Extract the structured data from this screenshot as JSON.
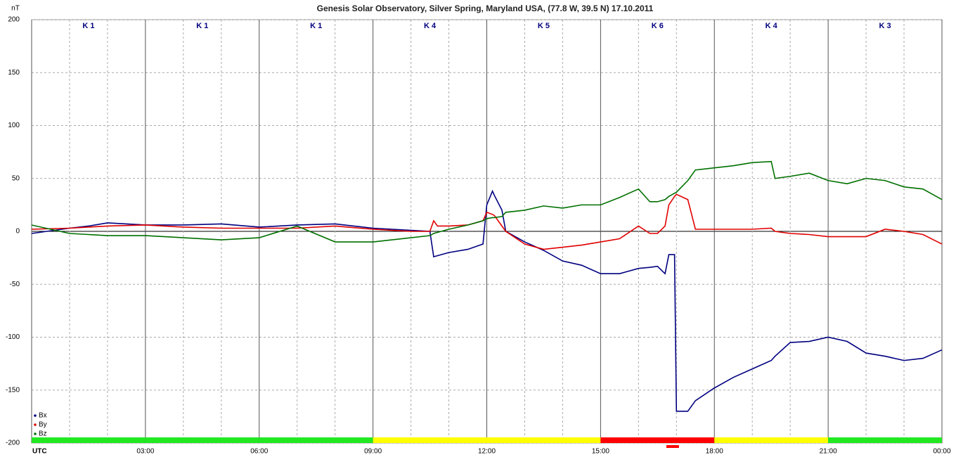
{
  "chart_data": {
    "type": "line",
    "title": "Genesis Solar Observatory, Silver Spring, Maryland USA, (77.8 W, 39.5 N)  17.10.2011",
    "y_label": "nT",
    "x": [
      0,
      1,
      1.5,
      2,
      3,
      4,
      5,
      6,
      7,
      8,
      9,
      10,
      10.5,
      10.6,
      10.7,
      11,
      11.5,
      11.9,
      12,
      12.15,
      12.2,
      12.4,
      12.5,
      13,
      13.5,
      14,
      14.5,
      15,
      15.5,
      16,
      16.3,
      16.5,
      16.7,
      16.8,
      16.95,
      17,
      17.3,
      17.5,
      18,
      18.5,
      19,
      19.5,
      19.6,
      20,
      20.5,
      21,
      21.5,
      22,
      22.5,
      23,
      23.5,
      24
    ],
    "series": [
      {
        "name": "Bx",
        "color": "#000080",
        "values": [
          -2,
          3,
          5,
          8,
          6,
          6,
          7,
          4,
          6,
          7,
          3,
          1,
          0,
          -24,
          -23,
          -20,
          -17,
          -12,
          25,
          38,
          34,
          20,
          0,
          -10,
          -18,
          -28,
          -32,
          -40,
          -40,
          -35,
          -34,
          -33,
          -40,
          -22,
          -22,
          -170,
          -170,
          -160,
          -148,
          -138,
          -130,
          -122,
          -118,
          -105,
          -104,
          -100,
          -104,
          -115,
          -118,
          -122,
          -120,
          -112
        ]
      },
      {
        "name": "By",
        "color": "#e00000",
        "values": [
          2,
          3,
          4,
          5,
          6,
          4,
          3,
          3,
          3,
          5,
          2,
          0,
          0,
          10,
          5,
          5,
          6,
          10,
          18,
          16,
          15,
          5,
          0,
          -12,
          -17,
          -15,
          -13,
          -10,
          -7,
          5,
          -2,
          -2,
          5,
          25,
          33,
          35,
          30,
          2,
          2,
          2,
          2,
          3,
          0,
          -2,
          -3,
          -5,
          -5,
          -5,
          2,
          0,
          -3,
          -12
        ]
      },
      {
        "name": "Bz",
        "color": "#007000",
        "values": [
          6,
          -2,
          -3,
          -4,
          -4,
          -6,
          -8,
          -6,
          5,
          -10,
          -10,
          -6,
          -4,
          -2,
          -1,
          2,
          6,
          10,
          12,
          13,
          13,
          14,
          18,
          20,
          24,
          22,
          25,
          25,
          32,
          40,
          28,
          28,
          30,
          33,
          36,
          37,
          48,
          58,
          60,
          62,
          65,
          66,
          50,
          52,
          55,
          48,
          45,
          50,
          48,
          42,
          40,
          30
        ]
      }
    ],
    "xlim": [
      0,
      24
    ],
    "xticks": [
      {
        "value": 0,
        "label": "UTC"
      },
      {
        "value": 3,
        "label": "03:00"
      },
      {
        "value": 6,
        "label": "06:00"
      },
      {
        "value": 9,
        "label": "09:00"
      },
      {
        "value": 12,
        "label": "12:00"
      },
      {
        "value": 15,
        "label": "15:00"
      },
      {
        "value": 18,
        "label": "18:00"
      },
      {
        "value": 21,
        "label": "21:00"
      },
      {
        "value": 24,
        "label": "00:00"
      }
    ],
    "x_minor_grid": [
      1,
      2,
      4,
      5,
      7,
      8,
      10,
      11,
      13,
      14,
      16,
      17,
      19,
      20,
      22,
      23
    ],
    "ylim": [
      -200,
      200
    ],
    "yticks": [
      -200,
      -150,
      -100,
      -50,
      0,
      50,
      100,
      150,
      200
    ],
    "grid": true,
    "legend": "bottom-left",
    "k_bands": [
      {
        "label": "K 1",
        "color": "#22e822"
      },
      {
        "label": "K 1",
        "color": "#22e822"
      },
      {
        "label": "K 1",
        "color": "#22e822"
      },
      {
        "label": "K 4",
        "color": "#ffff00"
      },
      {
        "label": "K 5",
        "color": "#ffff00"
      },
      {
        "label": "K 6",
        "color": "#ff0000"
      },
      {
        "label": "K 4",
        "color": "#ffff00"
      },
      {
        "label": "K 3",
        "color": "#22e822"
      }
    ],
    "alert_marker": {
      "x": 16.9,
      "color": "#ff0000"
    }
  }
}
